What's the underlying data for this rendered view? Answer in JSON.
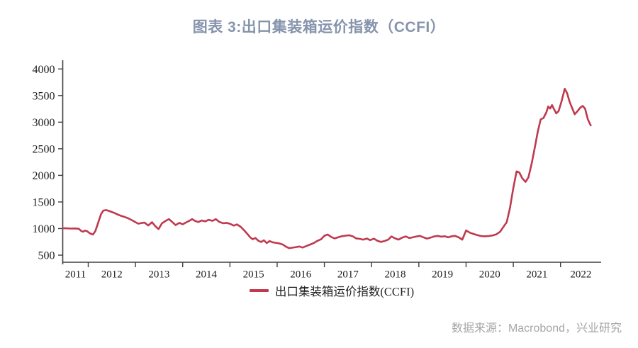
{
  "header": {
    "title": "图表 3:出口集装箱运价指数（CCFI）"
  },
  "legend": {
    "label": "出口集装箱运价指数(CCFI)",
    "line_color": "#bf3a4e"
  },
  "footer": {
    "source": "数据来源：Macrobond，兴业研究"
  },
  "colors": {
    "title": "#8694ac",
    "axis": "#404040",
    "tick_label": "#1c1c1c",
    "line": "#bf3a4e",
    "legend_text": "#1f1f1f",
    "source_text": "#a6a6a6",
    "background": "#ffffff"
  },
  "chart_data": {
    "type": "line",
    "title": "图表 3:出口集装箱运价指数（CCFI）",
    "xlabel": "",
    "ylabel": "",
    "xlim": [
      2011.46,
      2022.86
    ],
    "ylim": [
      500,
      4000
    ],
    "grid": false,
    "legend_position": "bottom",
    "x_ticks": [
      2012,
      2013,
      2014,
      2015,
      2016,
      2017,
      2018,
      2019,
      2020,
      2021,
      2022
    ],
    "x_tick_labels": [
      "2011",
      "2012",
      "2013",
      "2014",
      "2015",
      "2016",
      "2017",
      "2018",
      "2019",
      "2020",
      "2021",
      "2022"
    ],
    "y_ticks": [
      500,
      1000,
      1500,
      2000,
      2500,
      3000,
      3500,
      4000
    ],
    "series": [
      {
        "name": "出口集装箱运价指数(CCFI)",
        "color": "#bf3a4e",
        "points": [
          [
            2011.46,
            1008
          ],
          [
            2011.55,
            1004
          ],
          [
            2011.64,
            1000
          ],
          [
            2011.72,
            1002
          ],
          [
            2011.8,
            996
          ],
          [
            2011.85,
            955
          ],
          [
            2011.89,
            940
          ],
          [
            2011.93,
            962
          ],
          [
            2011.98,
            948
          ],
          [
            2012.04,
            908
          ],
          [
            2012.1,
            888
          ],
          [
            2012.15,
            952
          ],
          [
            2012.21,
            1110
          ],
          [
            2012.27,
            1270
          ],
          [
            2012.32,
            1338
          ],
          [
            2012.38,
            1348
          ],
          [
            2012.44,
            1332
          ],
          [
            2012.5,
            1312
          ],
          [
            2012.56,
            1290
          ],
          [
            2012.63,
            1262
          ],
          [
            2012.7,
            1238
          ],
          [
            2012.78,
            1215
          ],
          [
            2012.85,
            1192
          ],
          [
            2012.92,
            1160
          ],
          [
            2013.0,
            1120
          ],
          [
            2013.06,
            1092
          ],
          [
            2013.13,
            1105
          ],
          [
            2013.19,
            1112
          ],
          [
            2013.27,
            1058
          ],
          [
            2013.35,
            1120
          ],
          [
            2013.43,
            1035
          ],
          [
            2013.49,
            990
          ],
          [
            2013.56,
            1098
          ],
          [
            2013.65,
            1150
          ],
          [
            2013.71,
            1178
          ],
          [
            2013.78,
            1122
          ],
          [
            2013.85,
            1065
          ],
          [
            2013.93,
            1108
          ],
          [
            2014.0,
            1080
          ],
          [
            2014.08,
            1120
          ],
          [
            2014.15,
            1150
          ],
          [
            2014.2,
            1178
          ],
          [
            2014.26,
            1145
          ],
          [
            2014.33,
            1122
          ],
          [
            2014.4,
            1152
          ],
          [
            2014.48,
            1136
          ],
          [
            2014.55,
            1165
          ],
          [
            2014.63,
            1145
          ],
          [
            2014.7,
            1178
          ],
          [
            2014.78,
            1122
          ],
          [
            2014.86,
            1100
          ],
          [
            2014.93,
            1108
          ],
          [
            2015.0,
            1090
          ],
          [
            2015.08,
            1056
          ],
          [
            2015.15,
            1078
          ],
          [
            2015.23,
            1032
          ],
          [
            2015.3,
            968
          ],
          [
            2015.37,
            898
          ],
          [
            2015.43,
            835
          ],
          [
            2015.48,
            800
          ],
          [
            2015.54,
            822
          ],
          [
            2015.6,
            772
          ],
          [
            2015.66,
            748
          ],
          [
            2015.72,
            780
          ],
          [
            2015.78,
            726
          ],
          [
            2015.84,
            765
          ],
          [
            2015.9,
            742
          ],
          [
            2015.97,
            732
          ],
          [
            2016.04,
            722
          ],
          [
            2016.12,
            698
          ],
          [
            2016.18,
            662
          ],
          [
            2016.25,
            632
          ],
          [
            2016.32,
            640
          ],
          [
            2016.4,
            652
          ],
          [
            2016.47,
            662
          ],
          [
            2016.54,
            642
          ],
          [
            2016.62,
            672
          ],
          [
            2016.7,
            700
          ],
          [
            2016.77,
            725
          ],
          [
            2016.85,
            768
          ],
          [
            2016.93,
            798
          ],
          [
            2017.0,
            865
          ],
          [
            2017.07,
            888
          ],
          [
            2017.15,
            838
          ],
          [
            2017.22,
            815
          ],
          [
            2017.3,
            838
          ],
          [
            2017.37,
            856
          ],
          [
            2017.45,
            866
          ],
          [
            2017.52,
            874
          ],
          [
            2017.6,
            854
          ],
          [
            2017.67,
            816
          ],
          [
            2017.75,
            806
          ],
          [
            2017.82,
            792
          ],
          [
            2017.9,
            812
          ],
          [
            2017.97,
            782
          ],
          [
            2018.05,
            810
          ],
          [
            2018.12,
            772
          ],
          [
            2018.2,
            748
          ],
          [
            2018.28,
            768
          ],
          [
            2018.35,
            790
          ],
          [
            2018.42,
            852
          ],
          [
            2018.5,
            815
          ],
          [
            2018.57,
            792
          ],
          [
            2018.65,
            830
          ],
          [
            2018.72,
            852
          ],
          [
            2018.8,
            822
          ],
          [
            2018.87,
            835
          ],
          [
            2018.95,
            852
          ],
          [
            2019.02,
            862
          ],
          [
            2019.1,
            835
          ],
          [
            2019.17,
            812
          ],
          [
            2019.25,
            830
          ],
          [
            2019.32,
            852
          ],
          [
            2019.4,
            862
          ],
          [
            2019.47,
            848
          ],
          [
            2019.55,
            856
          ],
          [
            2019.62,
            835
          ],
          [
            2019.7,
            856
          ],
          [
            2019.77,
            862
          ],
          [
            2019.85,
            832
          ],
          [
            2019.92,
            792
          ],
          [
            2020.0,
            965
          ],
          [
            2020.08,
            922
          ],
          [
            2020.16,
            898
          ],
          [
            2020.24,
            876
          ],
          [
            2020.32,
            860
          ],
          [
            2020.4,
            854
          ],
          [
            2020.48,
            860
          ],
          [
            2020.56,
            870
          ],
          [
            2020.64,
            892
          ],
          [
            2020.72,
            938
          ],
          [
            2020.79,
            1030
          ],
          [
            2020.86,
            1120
          ],
          [
            2020.93,
            1388
          ],
          [
            2021.0,
            1760
          ],
          [
            2021.07,
            2075
          ],
          [
            2021.13,
            2052
          ],
          [
            2021.19,
            1945
          ],
          [
            2021.26,
            1878
          ],
          [
            2021.32,
            1962
          ],
          [
            2021.39,
            2228
          ],
          [
            2021.46,
            2542
          ],
          [
            2021.52,
            2828
          ],
          [
            2021.58,
            3052
          ],
          [
            2021.64,
            3078
          ],
          [
            2021.7,
            3185
          ],
          [
            2021.74,
            3295
          ],
          [
            2021.78,
            3255
          ],
          [
            2021.82,
            3320
          ],
          [
            2021.87,
            3232
          ],
          [
            2021.91,
            3165
          ],
          [
            2021.96,
            3208
          ],
          [
            2022.02,
            3385
          ],
          [
            2022.09,
            3628
          ],
          [
            2022.14,
            3545
          ],
          [
            2022.19,
            3388
          ],
          [
            2022.24,
            3278
          ],
          [
            2022.3,
            3148
          ],
          [
            2022.36,
            3208
          ],
          [
            2022.42,
            3275
          ],
          [
            2022.47,
            3305
          ],
          [
            2022.52,
            3255
          ],
          [
            2022.58,
            3052
          ],
          [
            2022.64,
            2940
          ]
        ]
      }
    ]
  }
}
